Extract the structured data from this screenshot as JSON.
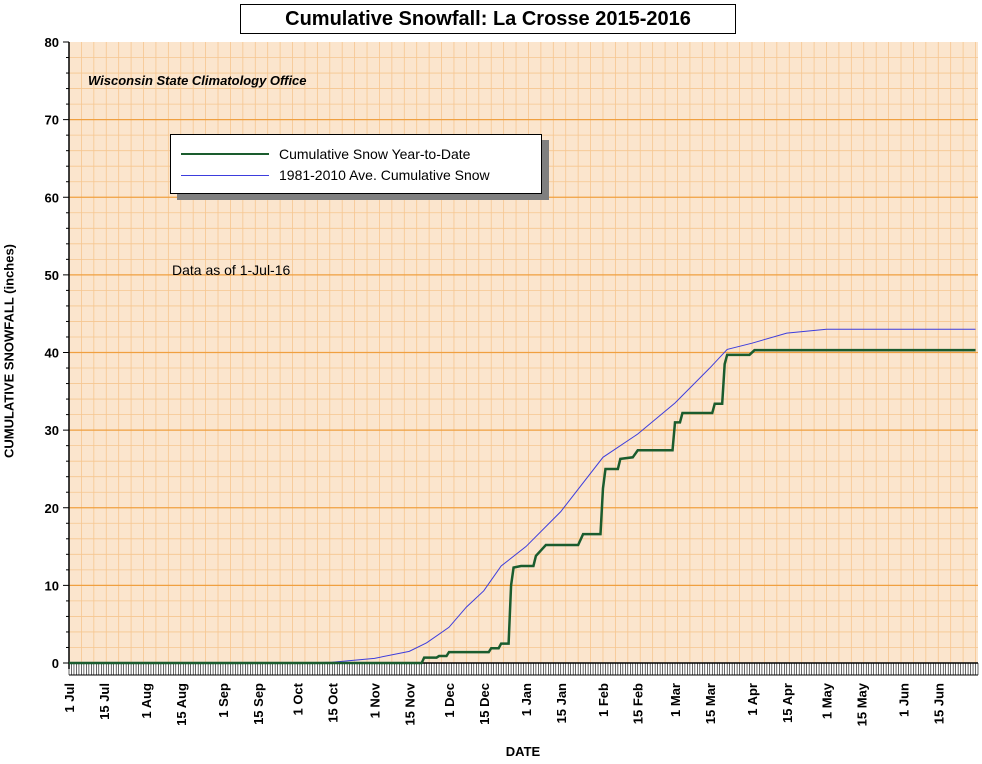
{
  "chart_data": {
    "type": "line",
    "title": "Cumulative Snowfall: La Crosse 2015-2016",
    "subtitle": "Wisconsin State Climatology Office",
    "note": "Data as of 1-Jul-16",
    "xlabel": "DATE",
    "ylabel": "CUMULATIVE SNOWFALL (inches)",
    "ylim": [
      0,
      80
    ],
    "yticks": [
      "0",
      "10",
      "20",
      "30",
      "40",
      "50",
      "60",
      "70",
      "80"
    ],
    "xlim": [
      "2015-07-01",
      "2016-06-30"
    ],
    "xticks": [
      {
        "label": "1 Jul",
        "date": "2015-07-01"
      },
      {
        "label": "15 Jul",
        "date": "2015-07-15"
      },
      {
        "label": "1 Aug",
        "date": "2015-08-01"
      },
      {
        "label": "15 Aug",
        "date": "2015-08-15"
      },
      {
        "label": "1 Sep",
        "date": "2015-09-01"
      },
      {
        "label": "15 Sep",
        "date": "2015-09-15"
      },
      {
        "label": "1 Oct",
        "date": "2015-10-01"
      },
      {
        "label": "15 Oct",
        "date": "2015-10-15"
      },
      {
        "label": "1 Nov",
        "date": "2015-11-01"
      },
      {
        "label": "15 Nov",
        "date": "2015-11-15"
      },
      {
        "label": "1 Dec",
        "date": "2015-12-01"
      },
      {
        "label": "15 Dec",
        "date": "2015-12-15"
      },
      {
        "label": "1 Jan",
        "date": "2016-01-01"
      },
      {
        "label": "15 Jan",
        "date": "2016-01-15"
      },
      {
        "label": "1 Feb",
        "date": "2016-02-01"
      },
      {
        "label": "15 Feb",
        "date": "2016-02-15"
      },
      {
        "label": "1 Mar",
        "date": "2016-03-01"
      },
      {
        "label": "15 Mar",
        "date": "2016-03-15"
      },
      {
        "label": "1 Apr",
        "date": "2016-04-01"
      },
      {
        "label": "15 Apr",
        "date": "2016-04-15"
      },
      {
        "label": "1 May",
        "date": "2016-05-01"
      },
      {
        "label": "15 May",
        "date": "2016-05-15"
      },
      {
        "label": "1 Jun",
        "date": "2016-06-01"
      },
      {
        "label": "15 Jun",
        "date": "2016-06-15"
      }
    ],
    "grid": true,
    "legend_position": "top-left",
    "background_color": "#fbe5cd",
    "grid_major_color": "#f0a040",
    "grid_minor_color": "#f6c690",
    "series": [
      {
        "name": "Cumulative Snow Year-to-Date",
        "color": "#1a5c2e",
        "step": true,
        "points": [
          [
            "2015-07-01",
            0
          ],
          [
            "2015-11-20",
            0
          ],
          [
            "2015-11-21",
            0.7
          ],
          [
            "2015-11-26",
            0.7
          ],
          [
            "2015-11-27",
            0.9
          ],
          [
            "2015-11-30",
            0.9
          ],
          [
            "2015-12-01",
            1.4
          ],
          [
            "2015-12-17",
            1.4
          ],
          [
            "2015-12-18",
            1.9
          ],
          [
            "2015-12-21",
            1.9
          ],
          [
            "2015-12-22",
            2.5
          ],
          [
            "2015-12-25",
            2.5
          ],
          [
            "2015-12-26",
            10.0
          ],
          [
            "2015-12-27",
            12.3
          ],
          [
            "2015-12-30",
            12.5
          ],
          [
            "2016-01-04",
            12.5
          ],
          [
            "2016-01-05",
            13.8
          ],
          [
            "2016-01-07",
            14.5
          ],
          [
            "2016-01-09",
            15.2
          ],
          [
            "2016-01-22",
            15.2
          ],
          [
            "2016-01-24",
            16.6
          ],
          [
            "2016-01-31",
            16.6
          ],
          [
            "2016-02-01",
            22.5
          ],
          [
            "2016-02-02",
            25.0
          ],
          [
            "2016-02-07",
            25.0
          ],
          [
            "2016-02-08",
            26.3
          ],
          [
            "2016-02-13",
            26.5
          ],
          [
            "2016-02-15",
            27.4
          ],
          [
            "2016-02-29",
            27.4
          ],
          [
            "2016-03-01",
            31.0
          ],
          [
            "2016-03-03",
            31.0
          ],
          [
            "2016-03-04",
            32.2
          ],
          [
            "2016-03-16",
            32.2
          ],
          [
            "2016-03-17",
            33.4
          ],
          [
            "2016-03-20",
            33.4
          ],
          [
            "2016-03-21",
            38.5
          ],
          [
            "2016-03-22",
            39.7
          ],
          [
            "2016-03-31",
            39.7
          ],
          [
            "2016-04-02",
            40.3
          ],
          [
            "2016-06-30",
            40.3
          ]
        ]
      },
      {
        "name": "1981-2010 Ave. Cumulative Snow",
        "color": "#3d3ddd",
        "step": false,
        "points": [
          [
            "2015-07-01",
            0
          ],
          [
            "2015-10-01",
            0
          ],
          [
            "2015-10-15",
            0.1
          ],
          [
            "2015-11-01",
            0.6
          ],
          [
            "2015-11-15",
            1.5
          ],
          [
            "2015-11-22",
            2.6
          ],
          [
            "2015-12-01",
            4.6
          ],
          [
            "2015-12-08",
            7.2
          ],
          [
            "2015-12-15",
            9.3
          ],
          [
            "2015-12-22",
            12.5
          ],
          [
            "2016-01-01",
            15.0
          ],
          [
            "2016-01-15",
            19.5
          ],
          [
            "2016-02-01",
            26.5
          ],
          [
            "2016-02-15",
            29.5
          ],
          [
            "2016-03-01",
            33.5
          ],
          [
            "2016-03-15",
            38.0
          ],
          [
            "2016-03-22",
            40.4
          ],
          [
            "2016-04-01",
            41.2
          ],
          [
            "2016-04-15",
            42.5
          ],
          [
            "2016-05-01",
            43.0
          ],
          [
            "2016-05-15",
            43.0
          ],
          [
            "2016-06-30",
            43.0
          ]
        ]
      }
    ]
  }
}
